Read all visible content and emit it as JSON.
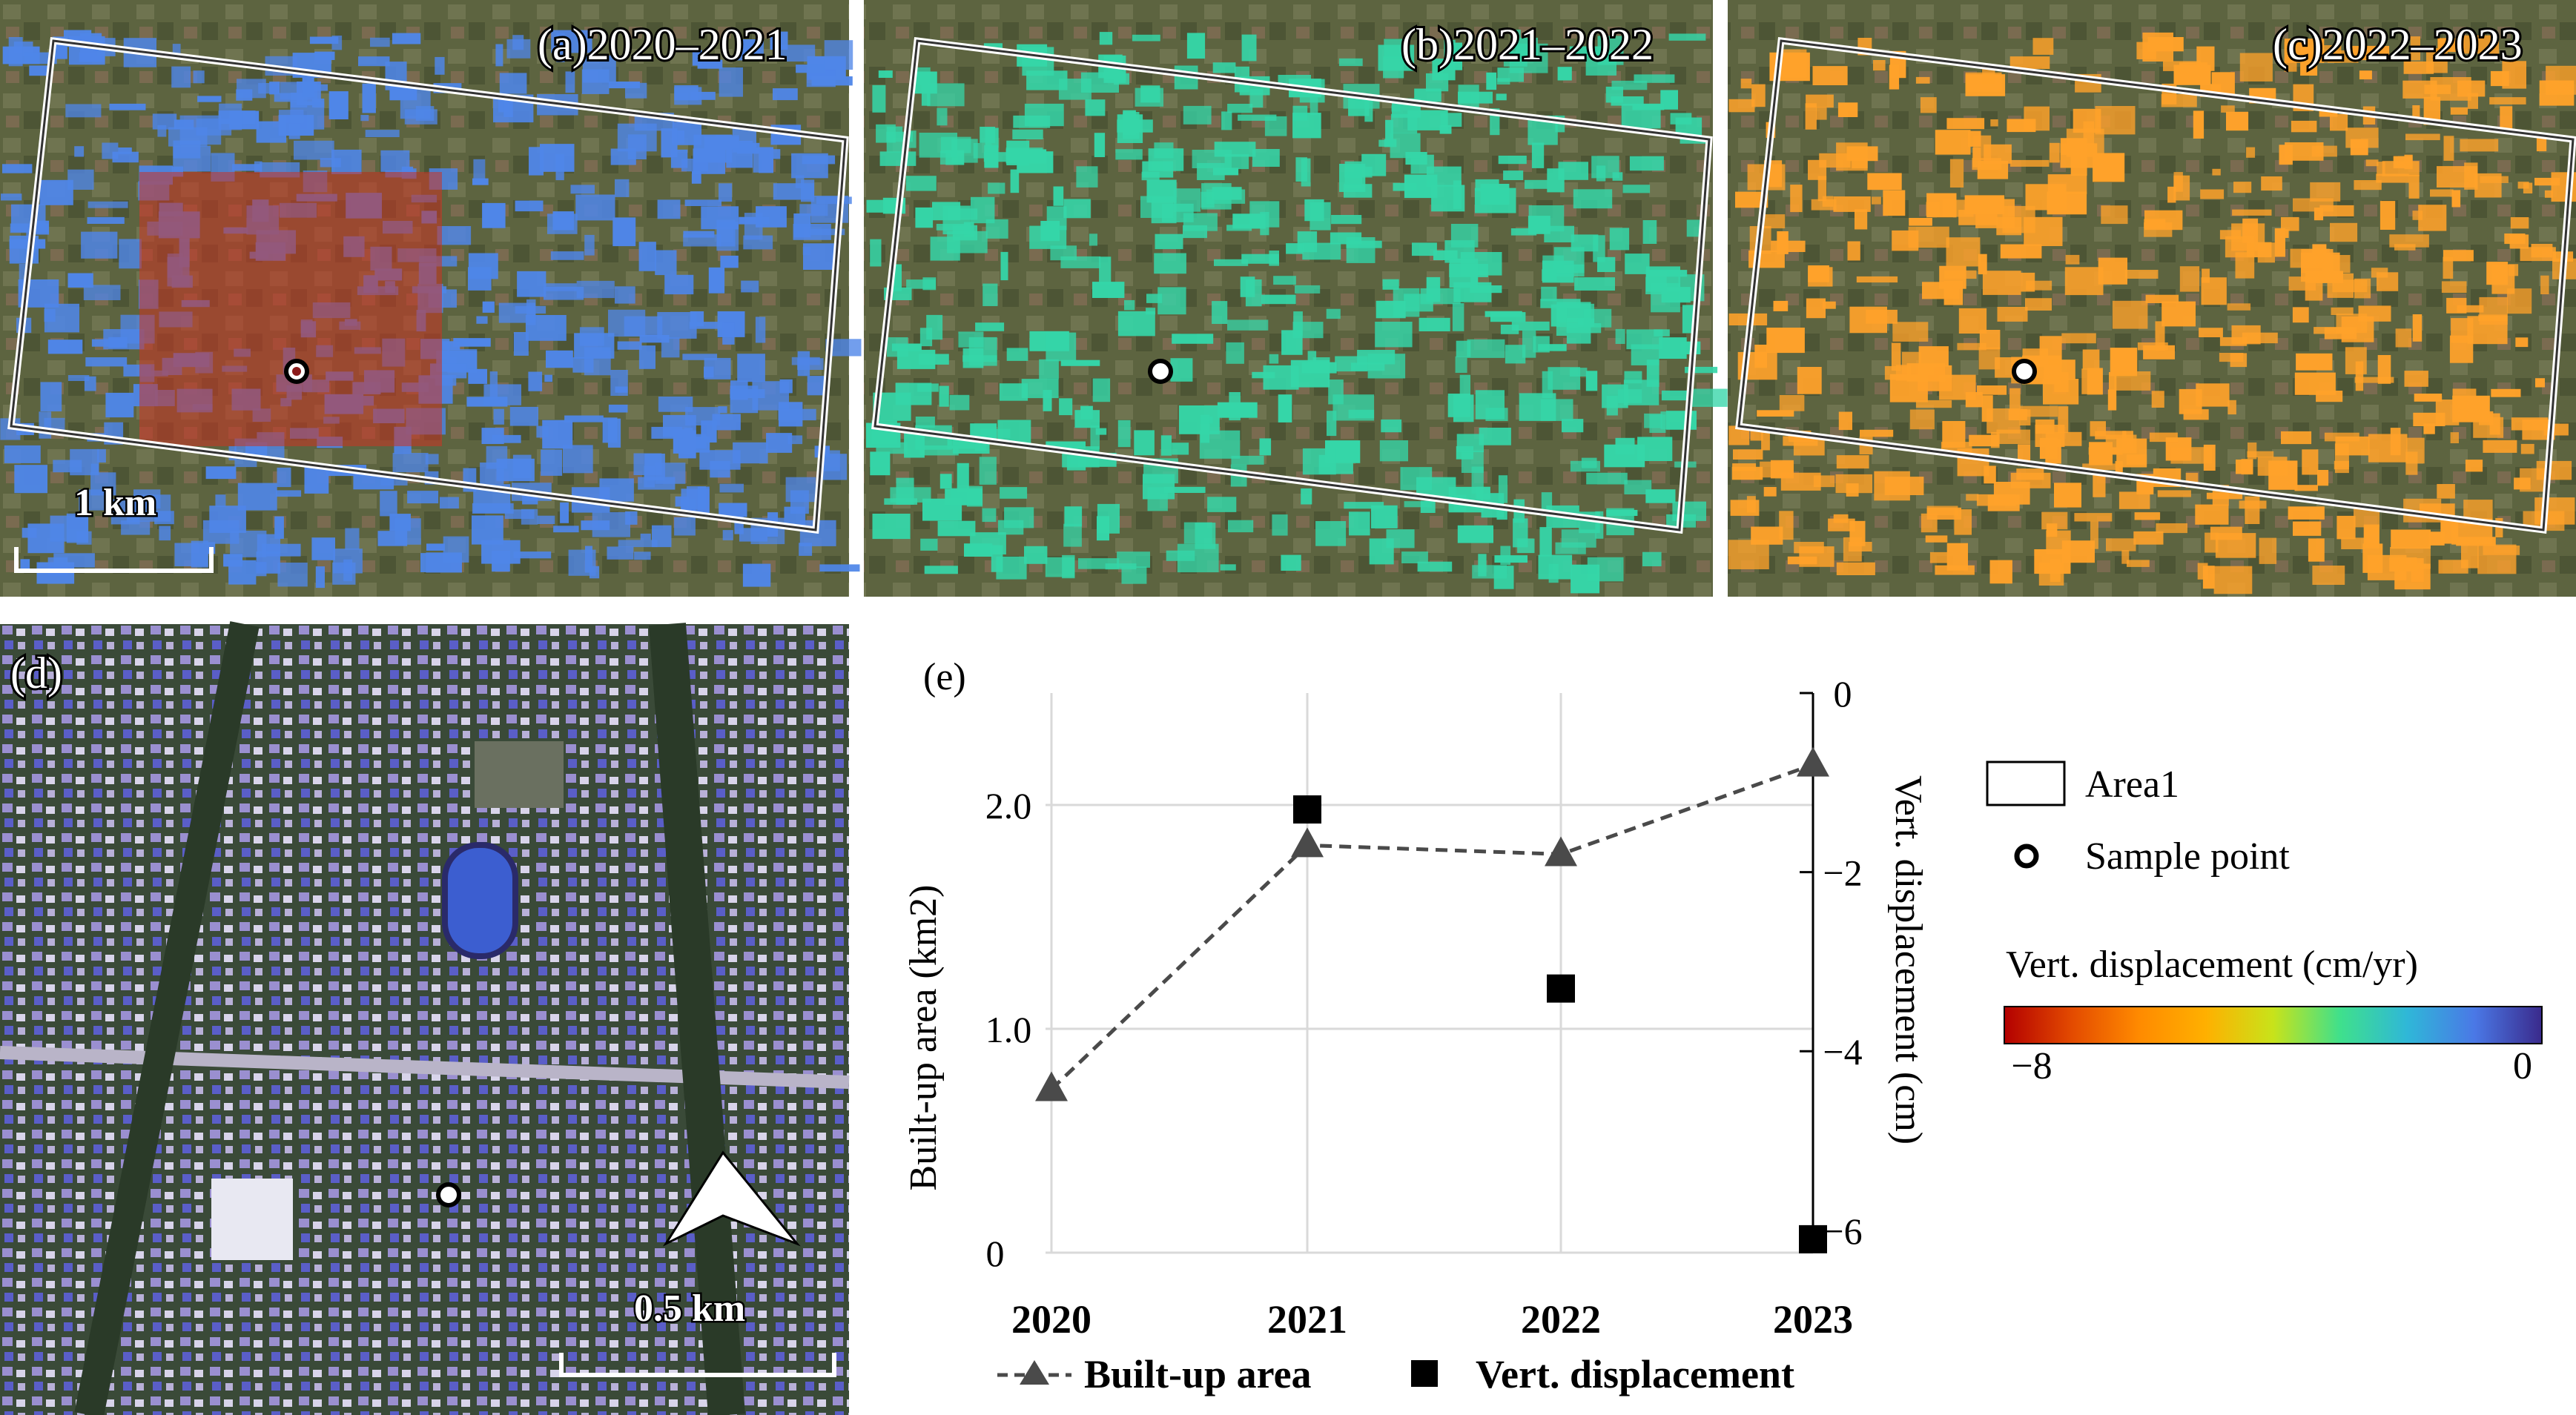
{
  "panels": {
    "a": {
      "title": "(a)2020–2021",
      "scale_label": "1 km"
    },
    "b": {
      "title": "(b)2021–2022"
    },
    "c": {
      "title": "(c)2022–2023"
    },
    "d": {
      "title": "(d)",
      "scale_label": "0.5 km"
    },
    "e": {
      "title": "(e)"
    }
  },
  "legend": {
    "area_label": "Area1",
    "sample_label": "Sample point",
    "colorbar_title": "Vert.  displacement (cm/yr)",
    "colorbar_min": "−8",
    "colorbar_max": "0",
    "colorbar_stops": [
      "#b30000",
      "#e34a00",
      "#ff8a00",
      "#ffb000",
      "#c8e31a",
      "#3fe08c",
      "#2fb7d8",
      "#4a78e6",
      "#3a2a8c"
    ]
  },
  "colors": {
    "line": "#4a4a4a",
    "marker": "#000000",
    "grid": "#d9d9d9",
    "highlight": "#cc3322",
    "displacement_a": "#4f86e8",
    "displacement_b": "#35d6a8",
    "displacement_c": "#ffa22a"
  },
  "chart_data": {
    "type": "line",
    "categories": [
      "2020",
      "2021",
      "2022",
      "2023"
    ],
    "series": [
      {
        "name": "Built-up area",
        "axis": "left",
        "style": "dashed-line-triangle",
        "values": [
          0.73,
          1.82,
          1.78,
          2.18
        ]
      },
      {
        "name": "Vert. displacement",
        "axis": "right",
        "style": "square-markers",
        "values": [
          null,
          -1.3,
          -3.3,
          -6.1
        ]
      }
    ],
    "left_axis": {
      "label": "Built-up area (km2)",
      "ticks": [
        "0",
        "1.0",
        "2.0"
      ],
      "tick_values": [
        0,
        1,
        2
      ],
      "range": [
        0,
        2.5
      ]
    },
    "right_axis": {
      "label": "Vert.  displacement (cm)",
      "ticks": [
        "0",
        "−2",
        "−4",
        "−6"
      ],
      "tick_values": [
        0,
        -2,
        -4,
        -6
      ],
      "range": [
        -6.25,
        0
      ]
    },
    "legend": [
      "Built-up area",
      "Vert. displacement"
    ]
  }
}
